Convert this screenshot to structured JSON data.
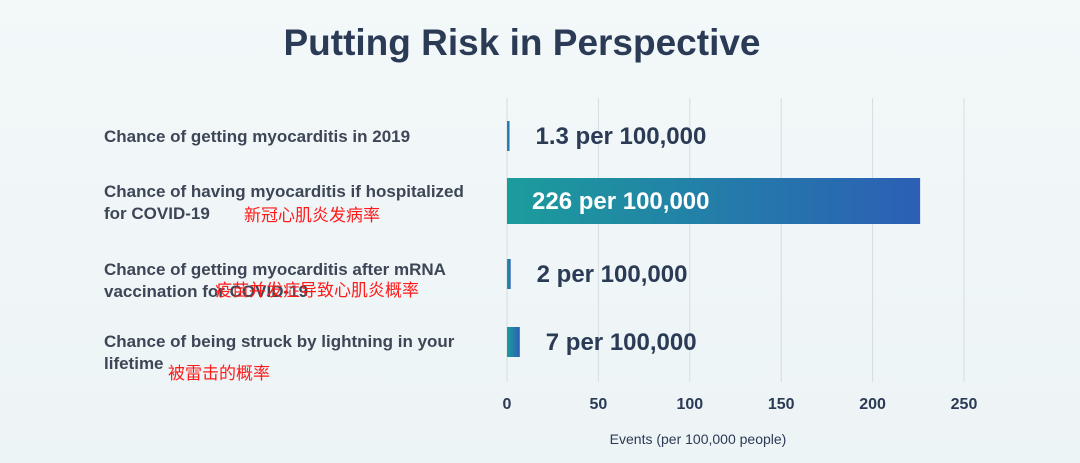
{
  "title": "Putting Risk in Perspective",
  "rows": [
    {
      "label": "Chance of getting myocarditis in 2019",
      "annotation": ""
    },
    {
      "label": "Chance of having myocarditis if hospitalized for COVID-19",
      "annotation": "新冠心肌炎发病率"
    },
    {
      "label": "Chance of getting myocarditis after mRNA vaccination for COVID-19",
      "annotation": "疫苗并发症导致心肌炎概率"
    },
    {
      "label": "Chance of being struck by lightning in your lifetime",
      "annotation": "被雷击的概率"
    }
  ],
  "chart_data": {
    "type": "bar",
    "orientation": "horizontal",
    "title": "Putting Risk in Perspective",
    "xlabel": "Events (per 100,000 people)",
    "ylabel": "",
    "xlim": [
      0,
      250
    ],
    "xticks": [
      0,
      50,
      100,
      150,
      200,
      250
    ],
    "grid": true,
    "categories": [
      "Chance of getting myocarditis in 2019",
      "Chance of having myocarditis if hospitalized for COVID-19",
      "Chance of getting myocarditis after mRNA vaccination for COVID-19",
      "Chance of being struck by lightning in your lifetime"
    ],
    "values": [
      1.3,
      226,
      2,
      7
    ],
    "data_labels": [
      "1.3 per 100,000",
      "226 per 100,000",
      "2 per 100,000",
      "7 per 100,000"
    ],
    "colors": {
      "bar_start": "#1b9c9c",
      "bar_end": "#2c5fb5",
      "text_dark": "#2b3a55",
      "text_light": "#ffffff"
    }
  }
}
